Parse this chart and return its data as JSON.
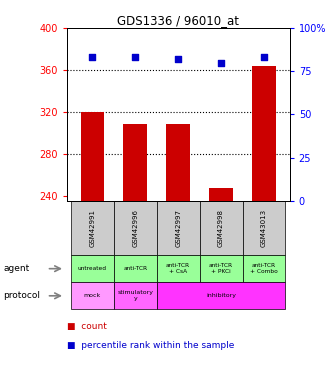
{
  "title": "GDS1336 / 96010_at",
  "samples": [
    "GSM42991",
    "GSM42996",
    "GSM42997",
    "GSM42998",
    "GSM43013"
  ],
  "counts": [
    320,
    308,
    308,
    247,
    364
  ],
  "percentile_ranks": [
    83,
    83,
    82,
    80,
    83
  ],
  "ylim_left": [
    235,
    400
  ],
  "ylim_right": [
    0,
    100
  ],
  "yticks_left": [
    240,
    280,
    320,
    360,
    400
  ],
  "yticks_right": [
    0,
    25,
    50,
    75,
    100
  ],
  "bar_color": "#cc0000",
  "dot_color": "#0000cc",
  "bar_bottom": 235,
  "agent_labels": [
    "untreated",
    "anti-TCR",
    "anti-TCR\n+ CsA",
    "anti-TCR\n+ PKCi",
    "anti-TCR\n+ Combo"
  ],
  "agent_color": "#99ff99",
  "protocol_info": [
    [
      0,
      1,
      "#ff99ff",
      "mock"
    ],
    [
      1,
      2,
      "#ff66ff",
      "stimulatory\ny"
    ],
    [
      2,
      5,
      "#ff33ff",
      "inhibitory"
    ]
  ],
  "sample_bg_color": "#cccccc",
  "legend_count_color": "#cc0000",
  "legend_dot_color": "#0000cc",
  "grid_lines": [
    280,
    320,
    360
  ],
  "dotted_lines": [
    360
  ]
}
